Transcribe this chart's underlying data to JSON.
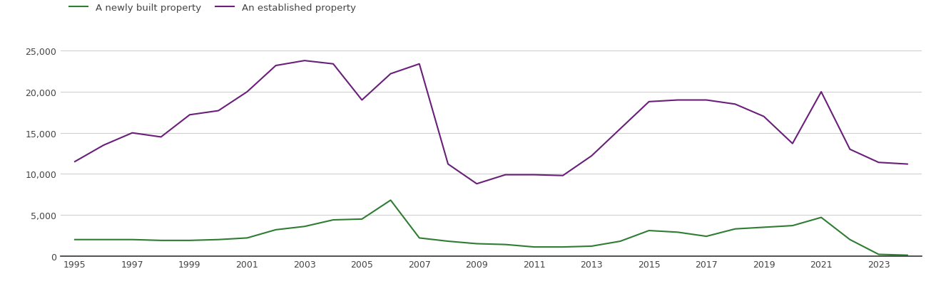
{
  "years": [
    1995,
    1996,
    1997,
    1998,
    1999,
    2000,
    2001,
    2002,
    2003,
    2004,
    2005,
    2006,
    2007,
    2008,
    2009,
    2010,
    2011,
    2012,
    2013,
    2014,
    2015,
    2016,
    2017,
    2018,
    2019,
    2020,
    2021,
    2022,
    2023,
    2024
  ],
  "new_built": [
    2000,
    2000,
    2000,
    1900,
    1900,
    2000,
    2200,
    3200,
    3600,
    4400,
    4500,
    6800,
    2200,
    1800,
    1500,
    1400,
    1100,
    1100,
    1200,
    1800,
    3100,
    2900,
    2400,
    3300,
    3500,
    3700,
    4700,
    2000,
    200,
    100
  ],
  "established": [
    11500,
    13500,
    15000,
    14500,
    17200,
    17700,
    20000,
    23200,
    23800,
    23400,
    19000,
    22200,
    23400,
    11200,
    8800,
    9900,
    9900,
    9800,
    12200,
    15500,
    18800,
    19000,
    19000,
    18500,
    17000,
    13700,
    20000,
    13000,
    11400,
    11200
  ],
  "new_color": "#2e7d32",
  "established_color": "#6a1f7a",
  "background_color": "#ffffff",
  "grid_color": "#d0d0d0",
  "legend_new": "A newly built property",
  "legend_established": "An established property",
  "ylim": [
    0,
    27000
  ],
  "yticks": [
    0,
    5000,
    10000,
    15000,
    20000,
    25000
  ],
  "xtick_years": [
    1995,
    1997,
    1999,
    2001,
    2003,
    2005,
    2007,
    2009,
    2011,
    2013,
    2015,
    2017,
    2019,
    2021,
    2023
  ],
  "xlim_left": 1994.5,
  "xlim_right": 2024.5
}
